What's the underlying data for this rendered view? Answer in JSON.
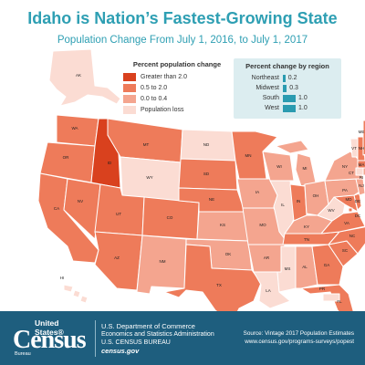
{
  "title": "Idaho is Nation’s Fastest-Growing State",
  "subtitle": "Population Change From July 1, 2016, to July 1, 2017",
  "legend_change": {
    "title": "Percent population change",
    "items": [
      {
        "label": "Greater than 2.0",
        "color": "#d9411e"
      },
      {
        "label": "0.5 to 2.0",
        "color": "#ee7b5a"
      },
      {
        "label": "0.0 to 0.4",
        "color": "#f4a58f"
      },
      {
        "label": "Population loss",
        "color": "#fbdcd3"
      }
    ]
  },
  "legend_region": {
    "title": "Percent change by region",
    "bar_color": "#2a9bb0",
    "rows": [
      {
        "name": "Northeast",
        "value": 0.2,
        "label": "0.2"
      },
      {
        "name": "Midwest",
        "value": 0.3,
        "label": "0.3"
      },
      {
        "name": "South",
        "value": 1.0,
        "label": "1.0"
      },
      {
        "name": "West",
        "value": 1.0,
        "label": "1.0"
      }
    ]
  },
  "states": {
    "AK": {
      "cls": 3
    },
    "HI": {
      "cls": 3
    },
    "PR": {
      "cls": 3
    },
    "WA": {
      "cls": 1
    },
    "OR": {
      "cls": 1
    },
    "CA": {
      "cls": 1
    },
    "ID": {
      "cls": 0
    },
    "NV": {
      "cls": 1
    },
    "MT": {
      "cls": 1
    },
    "WY": {
      "cls": 3
    },
    "UT": {
      "cls": 1
    },
    "AZ": {
      "cls": 1
    },
    "CO": {
      "cls": 1
    },
    "NM": {
      "cls": 2
    },
    "ND": {
      "cls": 3
    },
    "SD": {
      "cls": 1
    },
    "NE": {
      "cls": 1
    },
    "KS": {
      "cls": 2
    },
    "OK": {
      "cls": 2
    },
    "TX": {
      "cls": 1
    },
    "MN": {
      "cls": 1
    },
    "IA": {
      "cls": 2
    },
    "MO": {
      "cls": 2
    },
    "AR": {
      "cls": 2
    },
    "LA": {
      "cls": 3
    },
    "WI": {
      "cls": 2
    },
    "IL": {
      "cls": 3
    },
    "MI": {
      "cls": 2
    },
    "IN": {
      "cls": 1
    },
    "KY": {
      "cls": 2
    },
    "TN": {
      "cls": 1
    },
    "MS": {
      "cls": 3
    },
    "AL": {
      "cls": 2
    },
    "OH": {
      "cls": 2
    },
    "WV": {
      "cls": 3
    },
    "GA": {
      "cls": 1
    },
    "FL": {
      "cls": 1
    },
    "SC": {
      "cls": 1
    },
    "NC": {
      "cls": 1
    },
    "VA": {
      "cls": 1
    },
    "PA": {
      "cls": 2
    },
    "NY": {
      "cls": 2
    },
    "VT": {
      "cls": 3
    },
    "NH": {
      "cls": 1
    },
    "ME": {
      "cls": 1
    },
    "MA": {
      "cls": 1
    },
    "CT": {
      "cls": 3
    },
    "RI": {
      "cls": 2
    },
    "NJ": {
      "cls": 2
    },
    "DE": {
      "cls": 1
    },
    "MD": {
      "cls": 1
    },
    "DC": {
      "cls": 1
    }
  },
  "footer": {
    "logo_top": "United States®",
    "logo_main": "Census",
    "logo_bottom": "Bureau",
    "dept_line1": "U.S. Department of Commerce",
    "dept_line2": "Economics and Statistics Administration",
    "dept_line3": "U.S. CENSUS BUREAU",
    "dept_line4": "census.gov",
    "source_line1": "Source: Vintage 2017 Population Estimates",
    "source_line2": "www.census.gov/programs-surveys/popest"
  }
}
